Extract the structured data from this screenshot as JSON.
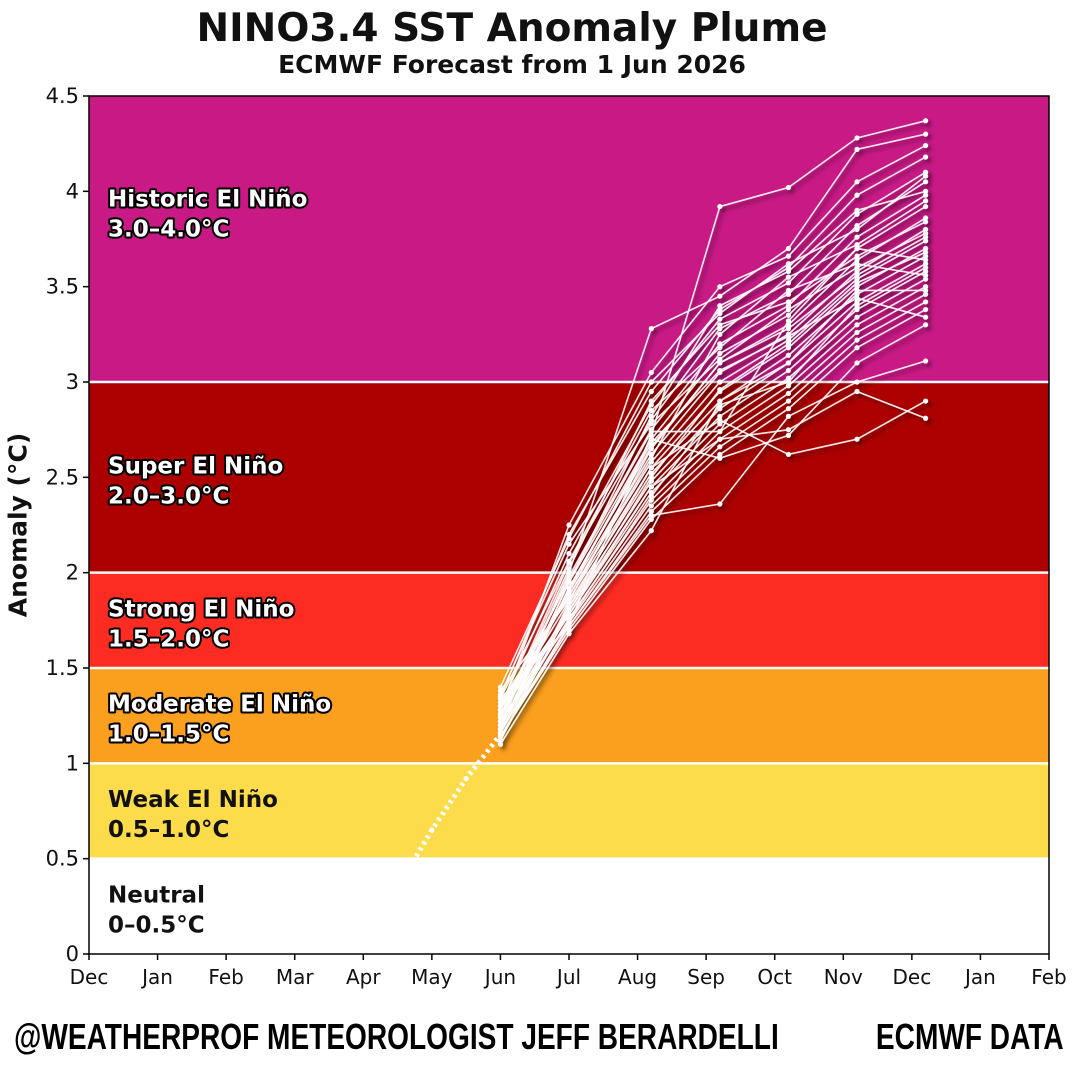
{
  "chart_data": {
    "type": "line",
    "title": "NINO3.4 SST Anomaly Plume",
    "subtitle": "ECMWF Forecast from 1 Jun 2026",
    "ylabel": "Anomaly (°C)",
    "xlabel": "",
    "ylim": [
      0,
      4.5
    ],
    "yticks": [
      "0",
      "0.5",
      "1",
      "1.5",
      "2",
      "2.5",
      "3",
      "3.5",
      "4",
      "4.5"
    ],
    "xticks": [
      "Dec",
      "Jan",
      "Feb",
      "Mar",
      "Apr",
      "May",
      "Jun",
      "Jul",
      "Aug",
      "Sep",
      "Oct",
      "Nov",
      "Dec",
      "Jan",
      "Feb"
    ],
    "grid": false,
    "bands": [
      {
        "from": 0,
        "to": 0.5,
        "label": "Neutral",
        "range": "0–0.5°C",
        "color": "#ffffff"
      },
      {
        "from": 0.5,
        "to": 1.0,
        "label": "Weak El Niño",
        "range": "0.5–1.0°C",
        "color": "#fddc4c"
      },
      {
        "from": 1.0,
        "to": 1.5,
        "label": "Moderate El Niño",
        "range": "1.0–1.5°C",
        "color": "#fb9f1e"
      },
      {
        "from": 1.5,
        "to": 2.0,
        "label": "Strong El Niño",
        "range": "1.5–2.0°C",
        "color": "#fd2c22"
      },
      {
        "from": 2.0,
        "to": 3.0,
        "label": "Super El Niño",
        "range": "2.0–3.0°C",
        "color": "#ac0000"
      },
      {
        "from": 3.0,
        "to": 4.5,
        "label": "Historic El Niño",
        "range": "3.0–4.0°C",
        "color": "#c81985"
      }
    ],
    "observed": {
      "x": [
        4.0,
        4.5,
        5.0,
        5.5,
        6.0
      ],
      "y": [
        0.08,
        0.35,
        0.65,
        0.92,
        1.15
      ]
    },
    "ensemble_x": [
      6.0,
      7.0,
      8.2,
      9.2,
      10.2,
      11.2,
      12.2
    ],
    "ensemble": [
      [
        1.14,
        1.73,
        2.72,
        3.92,
        4.02,
        4.28,
        4.37
      ],
      [
        1.2,
        2.0,
        3.28,
        3.45,
        3.7,
        4.22,
        4.3
      ],
      [
        1.28,
        2.25,
        3.05,
        3.5,
        3.66,
        4.05,
        4.24
      ],
      [
        1.35,
        2.2,
        2.95,
        3.38,
        3.6,
        3.98,
        4.18
      ],
      [
        1.3,
        2.1,
        2.88,
        3.33,
        3.52,
        3.88,
        4.1
      ],
      [
        1.25,
        2.05,
        2.8,
        3.28,
        3.46,
        3.82,
        4.05
      ],
      [
        1.22,
        1.98,
        2.75,
        3.2,
        3.4,
        3.76,
        3.98
      ],
      [
        1.18,
        1.95,
        2.7,
        3.15,
        3.35,
        3.7,
        3.92
      ],
      [
        1.16,
        1.92,
        2.66,
        3.1,
        3.3,
        3.64,
        3.86
      ],
      [
        1.24,
        1.9,
        2.62,
        3.05,
        3.25,
        3.58,
        3.8
      ],
      [
        1.32,
        1.88,
        2.58,
        3.0,
        3.22,
        3.54,
        3.74
      ],
      [
        1.38,
        1.86,
        2.55,
        2.95,
        3.18,
        3.5,
        3.7
      ],
      [
        1.12,
        1.84,
        2.52,
        2.9,
        3.14,
        3.46,
        3.66
      ],
      [
        1.2,
        1.82,
        2.48,
        2.86,
        3.1,
        3.42,
        3.62
      ],
      [
        1.26,
        1.8,
        2.45,
        2.82,
        3.06,
        3.38,
        3.58
      ],
      [
        1.3,
        1.78,
        2.42,
        2.78,
        3.02,
        3.34,
        3.54
      ],
      [
        1.16,
        1.76,
        2.38,
        2.74,
        2.98,
        3.3,
        3.5
      ],
      [
        1.22,
        1.74,
        2.35,
        2.7,
        2.94,
        3.26,
        3.46
      ],
      [
        1.34,
        1.72,
        2.32,
        2.66,
        2.9,
        3.22,
        3.42
      ],
      [
        1.14,
        1.7,
        2.28,
        2.62,
        2.86,
        3.18,
        3.38
      ],
      [
        1.28,
        1.88,
        2.6,
        3.25,
        3.55,
        3.72,
        3.95
      ],
      [
        1.18,
        1.95,
        2.82,
        3.4,
        3.58,
        3.9,
        4.0
      ],
      [
        1.24,
        2.02,
        2.9,
        3.3,
        3.42,
        3.66,
        3.84
      ],
      [
        1.36,
        2.15,
        2.78,
        3.12,
        3.38,
        3.6,
        3.78
      ],
      [
        1.12,
        1.8,
        2.5,
        2.96,
        3.2,
        3.52,
        3.68
      ],
      [
        1.2,
        1.75,
        2.4,
        2.88,
        3.0,
        3.4,
        3.6
      ],
      [
        1.26,
        1.85,
        2.65,
        3.1,
        3.28,
        3.56,
        3.76
      ],
      [
        1.3,
        1.9,
        2.7,
        2.6,
        2.72,
        3.1,
        3.3
      ],
      [
        1.16,
        1.82,
        2.55,
        2.8,
        2.62,
        2.7,
        2.9
      ],
      [
        1.22,
        1.78,
        2.45,
        2.7,
        2.75,
        2.95,
        2.81
      ],
      [
        1.14,
        1.72,
        2.3,
        2.36,
        2.82,
        3.0,
        3.11
      ],
      [
        1.34,
        2.06,
        2.85,
        3.18,
        3.48,
        3.62,
        3.56
      ],
      [
        1.18,
        1.92,
        2.68,
        3.06,
        3.24,
        3.44,
        3.34
      ],
      [
        1.4,
        2.18,
        3.0,
        3.36,
        3.62,
        3.8,
        4.08
      ],
      [
        1.1,
        1.68,
        2.22,
        2.9,
        3.1,
        3.48,
        3.48
      ],
      [
        1.28,
        1.96,
        2.74,
        2.74,
        3.32,
        3.7,
        3.64
      ]
    ]
  },
  "footer": {
    "left": "@WEATHERPROF METEOROLOGIST JEFF BERARDELLI",
    "right": "ECMWF DATA"
  }
}
